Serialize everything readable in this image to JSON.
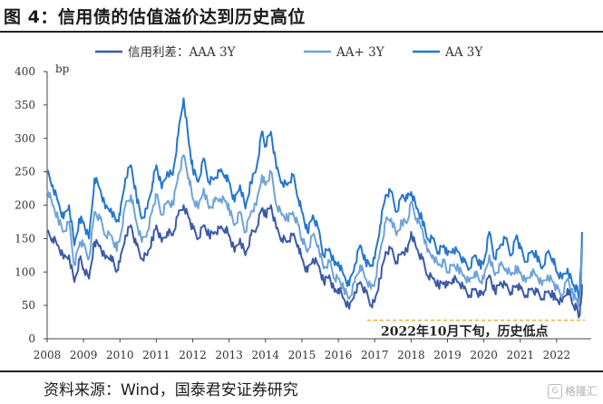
{
  "figure": {
    "title": "图 4：信用债的估值溢价达到历史高位",
    "source": "资料来源：Wind，国泰君安证券研究",
    "watermark": "格隆汇"
  },
  "colors": {
    "AAA": "#3c5aa6",
    "AAplus": "#6fa3d8",
    "AA": "#2676cc",
    "annotation_line": "#f2b33d"
  },
  "chart_data": {
    "type": "line",
    "title": "",
    "ylabel": "bp",
    "ylim": [
      0,
      400
    ],
    "yticks": [
      0,
      50,
      100,
      150,
      200,
      250,
      300,
      350,
      400
    ],
    "xlim": [
      2008.0,
      2022.75
    ],
    "xticks": [
      "2008",
      "2009",
      "2010",
      "2011",
      "2012",
      "2013",
      "2014",
      "2015",
      "2016",
      "2017",
      "2018",
      "2019",
      "2020",
      "2021",
      "2022"
    ],
    "legend_position": "top",
    "annotation": {
      "text": "2022年10月下旬，历史低点",
      "y": 25
    },
    "series": [
      {
        "name": "信用利差：AAA 3Y",
        "color_key": "AAA",
        "x": [
          2008.0,
          2008.15,
          2008.3,
          2008.45,
          2008.6,
          2008.75,
          2008.9,
          2009.0,
          2009.15,
          2009.3,
          2009.45,
          2009.6,
          2009.75,
          2009.9,
          2010.0,
          2010.15,
          2010.3,
          2010.45,
          2010.6,
          2010.75,
          2010.9,
          2011.0,
          2011.15,
          2011.3,
          2011.45,
          2011.6,
          2011.75,
          2011.9,
          2012.0,
          2012.15,
          2012.3,
          2012.45,
          2012.6,
          2012.75,
          2012.9,
          2013.0,
          2013.15,
          2013.3,
          2013.45,
          2013.6,
          2013.75,
          2013.9,
          2014.0,
          2014.15,
          2014.3,
          2014.45,
          2014.6,
          2014.75,
          2014.9,
          2015.0,
          2015.15,
          2015.3,
          2015.45,
          2015.6,
          2015.75,
          2015.9,
          2016.0,
          2016.15,
          2016.3,
          2016.45,
          2016.6,
          2016.75,
          2016.9,
          2017.0,
          2017.15,
          2017.3,
          2017.45,
          2017.6,
          2017.75,
          2017.9,
          2018.0,
          2018.15,
          2018.3,
          2018.45,
          2018.6,
          2018.75,
          2018.9,
          2019.0,
          2019.15,
          2019.3,
          2019.45,
          2019.6,
          2019.75,
          2019.9,
          2020.0,
          2020.15,
          2020.3,
          2020.45,
          2020.6,
          2020.75,
          2020.9,
          2021.0,
          2021.15,
          2021.3,
          2021.45,
          2021.6,
          2021.75,
          2021.9,
          2022.0,
          2022.15,
          2022.3,
          2022.45,
          2022.55,
          2022.62,
          2022.67,
          2022.7
        ],
        "y": [
          160,
          150,
          140,
          120,
          125,
          85,
          120,
          105,
          90,
          145,
          140,
          120,
          125,
          100,
          115,
          155,
          170,
          140,
          120,
          125,
          150,
          170,
          145,
          160,
          155,
          185,
          200,
          180,
          165,
          150,
          170,
          155,
          160,
          165,
          165,
          155,
          130,
          150,
          125,
          155,
          165,
          195,
          185,
          200,
          165,
          150,
          145,
          155,
          140,
          120,
          100,
          120,
          110,
          85,
          95,
          70,
          75,
          60,
          45,
          70,
          85,
          70,
          50,
          55,
          90,
          130,
          135,
          115,
          130,
          130,
          160,
          135,
          120,
          95,
          90,
          80,
          85,
          80,
          90,
          85,
          75,
          65,
          75,
          65,
          70,
          95,
          70,
          85,
          80,
          70,
          80,
          75,
          65,
          75,
          70,
          60,
          70,
          65,
          60,
          55,
          75,
          50,
          45,
          35,
          55,
          80
        ]
      },
      {
        "name": "AA+ 3Y",
        "color_key": "AAplus",
        "x": [
          2008.0,
          2008.15,
          2008.3,
          2008.45,
          2008.6,
          2008.75,
          2008.9,
          2009.0,
          2009.15,
          2009.3,
          2009.45,
          2009.6,
          2009.75,
          2009.9,
          2010.0,
          2010.15,
          2010.3,
          2010.45,
          2010.6,
          2010.75,
          2010.9,
          2011.0,
          2011.15,
          2011.3,
          2011.45,
          2011.6,
          2011.75,
          2011.9,
          2012.0,
          2012.15,
          2012.3,
          2012.45,
          2012.6,
          2012.75,
          2012.9,
          2013.0,
          2013.15,
          2013.3,
          2013.45,
          2013.6,
          2013.75,
          2013.9,
          2014.0,
          2014.15,
          2014.3,
          2014.45,
          2014.6,
          2014.75,
          2014.9,
          2015.0,
          2015.15,
          2015.3,
          2015.45,
          2015.6,
          2015.75,
          2015.9,
          2016.0,
          2016.15,
          2016.3,
          2016.45,
          2016.6,
          2016.75,
          2016.9,
          2017.0,
          2017.15,
          2017.3,
          2017.45,
          2017.6,
          2017.75,
          2017.9,
          2018.0,
          2018.15,
          2018.3,
          2018.45,
          2018.6,
          2018.75,
          2018.9,
          2019.0,
          2019.15,
          2019.3,
          2019.45,
          2019.6,
          2019.75,
          2019.9,
          2020.0,
          2020.15,
          2020.3,
          2020.45,
          2020.6,
          2020.75,
          2020.9,
          2021.0,
          2021.15,
          2021.3,
          2021.45,
          2021.6,
          2021.75,
          2021.9,
          2022.0,
          2022.15,
          2022.3,
          2022.45,
          2022.55,
          2022.62,
          2022.67,
          2022.7
        ],
        "y": [
          225,
          200,
          180,
          160,
          175,
          110,
          145,
          140,
          120,
          190,
          180,
          155,
          155,
          135,
          150,
          200,
          215,
          175,
          145,
          160,
          195,
          215,
          185,
          205,
          200,
          245,
          275,
          240,
          210,
          195,
          225,
          195,
          205,
          210,
          205,
          195,
          170,
          190,
          160,
          190,
          200,
          245,
          230,
          250,
          200,
          185,
          180,
          190,
          170,
          150,
          130,
          155,
          140,
          105,
          115,
          90,
          90,
          75,
          60,
          85,
          110,
          90,
          75,
          85,
          130,
          175,
          180,
          155,
          175,
          175,
          205,
          180,
          165,
          130,
          125,
          110,
          115,
          100,
          110,
          105,
          95,
          85,
          100,
          85,
          90,
          125,
          95,
          110,
          105,
          95,
          105,
          100,
          85,
          100,
          95,
          80,
          95,
          85,
          75,
          65,
          90,
          65,
          60,
          50,
          80,
          135
        ]
      },
      {
        "name": "AA 3Y",
        "color_key": "AA",
        "x": [
          2008.0,
          2008.15,
          2008.3,
          2008.45,
          2008.6,
          2008.75,
          2008.9,
          2009.0,
          2009.15,
          2009.3,
          2009.45,
          2009.6,
          2009.75,
          2009.9,
          2010.0,
          2010.15,
          2010.3,
          2010.45,
          2010.6,
          2010.75,
          2010.9,
          2011.0,
          2011.15,
          2011.3,
          2011.45,
          2011.6,
          2011.75,
          2011.9,
          2012.0,
          2012.15,
          2012.3,
          2012.45,
          2012.6,
          2012.75,
          2012.9,
          2013.0,
          2013.15,
          2013.3,
          2013.45,
          2013.6,
          2013.75,
          2013.9,
          2014.0,
          2014.15,
          2014.3,
          2014.45,
          2014.6,
          2014.75,
          2014.9,
          2015.0,
          2015.15,
          2015.3,
          2015.45,
          2015.6,
          2015.75,
          2015.9,
          2016.0,
          2016.15,
          2016.3,
          2016.45,
          2016.6,
          2016.75,
          2016.9,
          2017.0,
          2017.15,
          2017.3,
          2017.45,
          2017.6,
          2017.75,
          2017.9,
          2018.0,
          2018.15,
          2018.3,
          2018.45,
          2018.6,
          2018.75,
          2018.9,
          2019.0,
          2019.15,
          2019.3,
          2019.45,
          2019.6,
          2019.75,
          2019.9,
          2020.0,
          2020.15,
          2020.3,
          2020.45,
          2020.6,
          2020.75,
          2020.9,
          2021.0,
          2021.15,
          2021.3,
          2021.45,
          2021.6,
          2021.75,
          2021.9,
          2022.0,
          2022.15,
          2022.3,
          2022.45,
          2022.55,
          2022.62,
          2022.67,
          2022.7
        ],
        "y": [
          250,
          230,
          205,
          180,
          200,
          140,
          180,
          175,
          150,
          240,
          225,
          195,
          195,
          175,
          185,
          240,
          260,
          215,
          180,
          195,
          235,
          260,
          225,
          250,
          245,
          305,
          360,
          290,
          255,
          235,
          270,
          235,
          240,
          250,
          245,
          235,
          205,
          230,
          195,
          235,
          255,
          310,
          290,
          310,
          255,
          235,
          230,
          245,
          210,
          190,
          160,
          185,
          165,
          125,
          135,
          110,
          115,
          95,
          80,
          110,
          140,
          115,
          110,
          120,
          170,
          215,
          220,
          190,
          215,
          210,
          220,
          195,
          180,
          150,
          150,
          130,
          140,
          125,
          135,
          130,
          115,
          105,
          125,
          110,
          115,
          160,
          120,
          140,
          150,
          125,
          155,
          135,
          115,
          130,
          125,
          105,
          130,
          120,
          100,
          90,
          105,
          80,
          75,
          60,
          110,
          160
        ]
      }
    ]
  }
}
